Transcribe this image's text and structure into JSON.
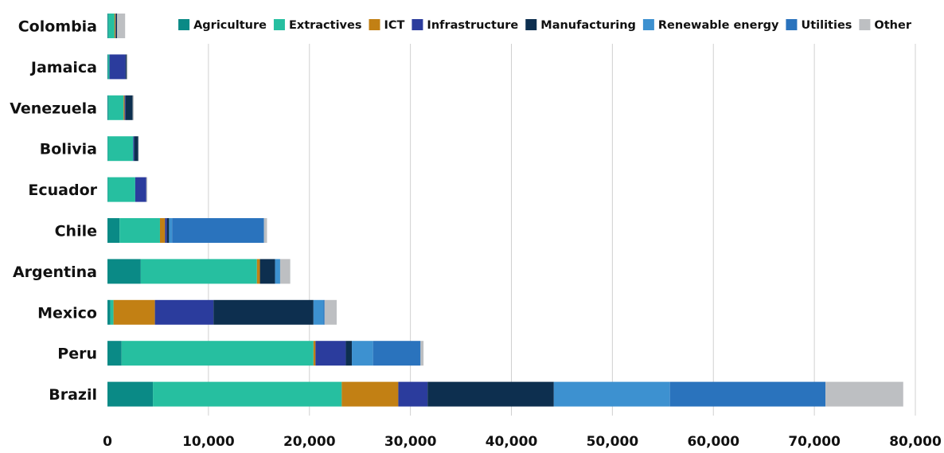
{
  "chart_data": {
    "type": "bar",
    "orientation": "horizontal",
    "stacked": true,
    "categories": [
      "Colombia",
      "Jamaica",
      "Venezuela",
      "Bolivia",
      "Ecuador",
      "Chile",
      "Argentina",
      "Mexico",
      "Peru",
      "Brazil"
    ],
    "series": [
      {
        "name": "Agriculture",
        "color": "#0a8a86",
        "values": [
          100,
          100,
          100,
          50,
          50,
          1200,
          3300,
          300,
          1400,
          4500
        ]
      },
      {
        "name": "Extractives",
        "color": "#26bfa0",
        "values": [
          600,
          100,
          1500,
          2500,
          2700,
          4000,
          11500,
          300,
          19000,
          18700
        ]
      },
      {
        "name": "ICT",
        "color": "#c28014",
        "values": [
          100,
          0,
          100,
          0,
          0,
          500,
          300,
          4100,
          200,
          5600
        ]
      },
      {
        "name": "Infrastructure",
        "color": "#2b3c9d",
        "values": [
          50,
          1600,
          100,
          100,
          1100,
          200,
          0,
          5800,
          3000,
          2900
        ]
      },
      {
        "name": "Manufacturing",
        "color": "#0d2f4f",
        "values": [
          100,
          100,
          700,
          400,
          0,
          200,
          1500,
          9900,
          600,
          12500
        ]
      },
      {
        "name": "Renewable energy",
        "color": "#3d91d0",
        "values": [
          0,
          0,
          0,
          0,
          0,
          300,
          500,
          1000,
          2100,
          11500
        ]
      },
      {
        "name": "Utilities",
        "color": "#2a73bd",
        "values": [
          0,
          0,
          0,
          0,
          0,
          9100,
          0,
          100,
          4700,
          15400
        ]
      },
      {
        "name": "Other",
        "color": "#bdbfc2",
        "values": [
          800,
          100,
          100,
          50,
          100,
          300,
          1000,
          1200,
          300,
          7700
        ]
      }
    ],
    "xlim": [
      0,
      80000
    ],
    "xticks": [
      "0",
      "10,000",
      "20,000",
      "30,000",
      "40,000",
      "50,000",
      "60,000",
      "70,000",
      "80,000"
    ],
    "xtick_values": [
      0,
      10000,
      20000,
      30000,
      40000,
      50000,
      60000,
      70000,
      80000
    ],
    "grid": true,
    "legend_position": "top-right"
  }
}
